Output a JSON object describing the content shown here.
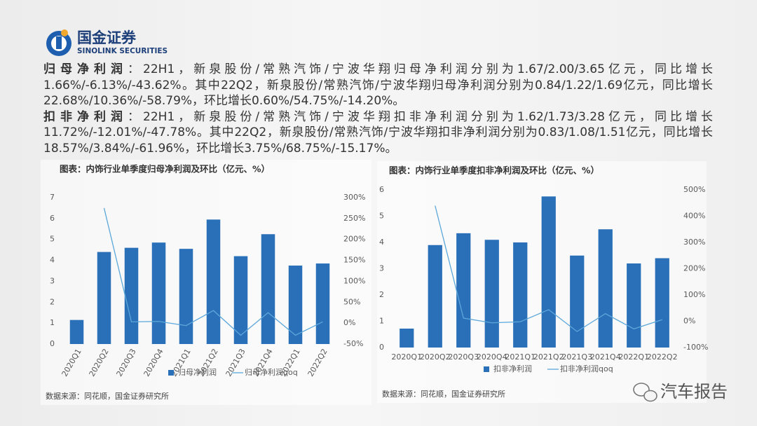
{
  "header": {
    "name": "国金证券",
    "name_en": "SINOLINK SECURITIES"
  },
  "paragraphs": [
    {
      "label": "归母净利润",
      "text": "：22H1，新泉股份/常熟汽饰/宁波华翔归母净利润分别为1.67/2.00/3.65亿元，同比增长1.66%/-6.13%/-43.62%。其中22Q2，新泉股份/常熟汽饰/宁波华翔归母净利润分别为0.84/1.22/1.69亿元，同比增长22.68%/10.36%/-58.79%，环比增长0.60%/54.75%/-14.20%。"
    },
    {
      "label": "扣非净利润",
      "text": "：22H1，新泉股份/常熟汽饰/宁波华翔扣非净利润分别为1.62/1.73/3.28亿元，同比增长11.72%/-12.01%/-47.78%。其中22Q2，新泉股份/常熟汽饰/宁波华翔扣非净利润分别为0.83/1.08/1.51亿元，同比增长18.57%/3.84%/-61.96%，环比增长3.75%/68.75%/-15.17%。"
    }
  ],
  "chart_data": [
    {
      "type": "combo",
      "title": "图表：内饰行业单季度归母净利润及环比（亿元、%）",
      "source": "数据来源：同花顺，国金证券研究所",
      "categories": [
        "2020Q1",
        "2020Q2",
        "2020Q3",
        "2020Q4",
        "2021Q1",
        "2021Q2",
        "2021Q3",
        "2021Q4",
        "2022Q1",
        "2022Q2"
      ],
      "series": [
        {
          "name": "归母净利润",
          "type": "bar",
          "color": "#2a70b8",
          "values": [
            1.15,
            4.4,
            4.6,
            4.85,
            4.55,
            5.95,
            4.2,
            5.25,
            3.75,
            3.85
          ]
        },
        {
          "name": "归母净利润qoq",
          "type": "line",
          "axis": "y2",
          "color": "#5ba7da",
          "values": [
            null,
            275,
            3,
            4,
            -6,
            30,
            -29,
            25,
            -29,
            3
          ]
        }
      ],
      "ylim": [
        0,
        7
      ],
      "yticks": [
        0,
        1,
        2,
        3,
        4,
        5,
        6,
        7
      ],
      "y2lim": [
        -50,
        300
      ],
      "y2ticks": [
        {
          "value": -50,
          "label": "-50%"
        },
        {
          "value": 0,
          "label": "0%"
        },
        {
          "value": 50,
          "label": "50%"
        },
        {
          "value": 100,
          "label": "100%"
        },
        {
          "value": 150,
          "label": "150%"
        },
        {
          "value": 200,
          "label": "200%"
        },
        {
          "value": 250,
          "label": "250%"
        },
        {
          "value": 300,
          "label": "300%"
        }
      ]
    },
    {
      "type": "combo",
      "title": "图表：内饰行业单季度扣非净利润及环比（亿元、%）",
      "source": "数据来源：同花顺，国金证券研究所",
      "categories": [
        "2020Q1",
        "2020Q2",
        "2020Q3",
        "2020Q4",
        "2021Q1",
        "2021Q2",
        "2021Q3",
        "2021Q4",
        "2022Q1",
        "2022Q2"
      ],
      "series": [
        {
          "name": "扣非净利润",
          "type": "bar",
          "color": "#2a70b8",
          "values": [
            0.72,
            3.9,
            4.35,
            4.1,
            4.0,
            5.75,
            3.5,
            4.5,
            3.2,
            3.4
          ]
        },
        {
          "name": "扣非净利润qoq",
          "type": "line",
          "axis": "y2",
          "color": "#5ba7da",
          "values": [
            null,
            440,
            12,
            -6,
            -2,
            44,
            -39,
            29,
            -29,
            6
          ]
        }
      ],
      "ylim": [
        0,
        6
      ],
      "yticks": [
        0,
        1,
        2,
        3,
        4,
        5,
        6
      ],
      "y2lim": [
        -100,
        500
      ],
      "y2ticks": [
        {
          "value": -100,
          "label": "-100%"
        },
        {
          "value": 0,
          "label": "0%"
        },
        {
          "value": 100,
          "label": "100%"
        },
        {
          "value": 200,
          "label": "200%"
        },
        {
          "value": 300,
          "label": "300%"
        },
        {
          "value": 400,
          "label": "400%"
        },
        {
          "value": 500,
          "label": "500%"
        }
      ]
    }
  ],
  "watermark": "汽车报告"
}
